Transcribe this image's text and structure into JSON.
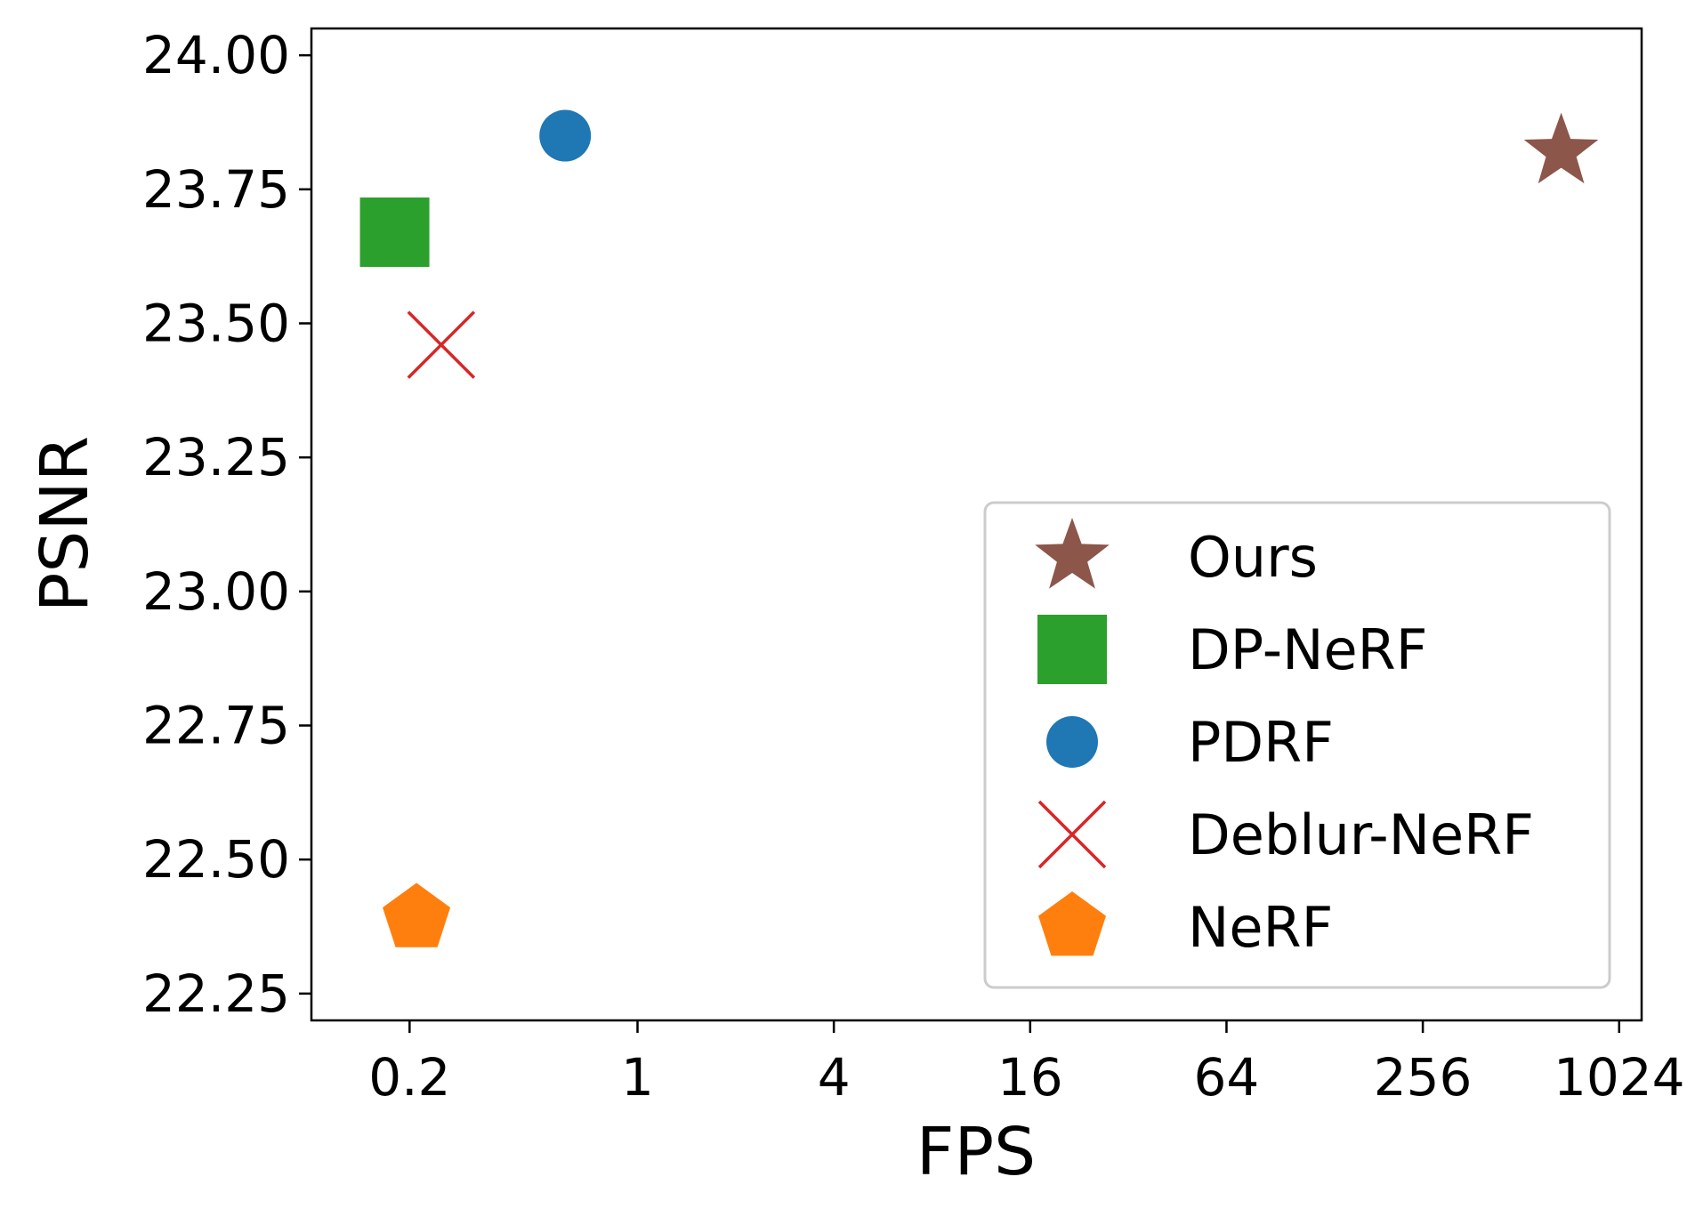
{
  "chart_data": {
    "type": "scatter",
    "title": "",
    "xlabel": "FPS",
    "ylabel": "PSNR",
    "x_scale": "log2",
    "xlim": [
      0.1,
      1200
    ],
    "ylim": [
      22.2,
      24.05
    ],
    "x_ticks": [
      0.2,
      1,
      4,
      16,
      64,
      256,
      1024
    ],
    "x_tick_labels": [
      "0.2",
      "1",
      "4",
      "16",
      "64",
      "256",
      "1024"
    ],
    "y_ticks": [
      22.25,
      22.5,
      22.75,
      23.0,
      23.25,
      23.5,
      23.75,
      24.0
    ],
    "y_tick_labels": [
      "22.25",
      "22.50",
      "22.75",
      "23.00",
      "23.25",
      "23.50",
      "23.75",
      "24.00"
    ],
    "grid": false,
    "legend_position": "lower-right",
    "series": [
      {
        "name": "Ours",
        "marker": "star",
        "color": "#8c564b",
        "x": 680,
        "y": 23.82
      },
      {
        "name": "DP-NeRF",
        "marker": "square",
        "color": "#2ca02c",
        "x": 0.18,
        "y": 23.67
      },
      {
        "name": "PDRF",
        "marker": "circle",
        "color": "#1f77b4",
        "x": 0.6,
        "y": 23.85
      },
      {
        "name": "Deblur-NeRF",
        "marker": "x",
        "color": "#d62728",
        "x": 0.25,
        "y": 23.46
      },
      {
        "name": "NeRF",
        "marker": "pentagon",
        "color": "#ff7f0e",
        "x": 0.21,
        "y": 22.39
      }
    ]
  }
}
